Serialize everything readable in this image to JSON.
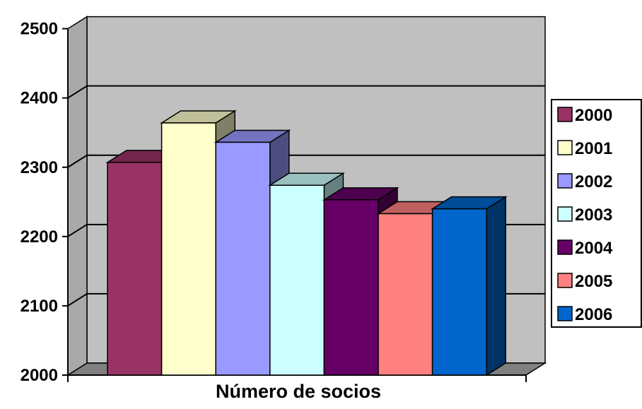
{
  "chart_data": {
    "type": "bar",
    "style": "3d-column",
    "x_axis_label": "Número de socios",
    "y_ticks": [
      "2000",
      "2100",
      "2200",
      "2300",
      "2400",
      "2500"
    ],
    "ylim": [
      2000,
      2500
    ],
    "grid": true,
    "legend_position": "right",
    "series": [
      {
        "name": "2000",
        "value": 2307,
        "color": "#993366"
      },
      {
        "name": "2001",
        "value": 2364,
        "color": "#FFFFCC"
      },
      {
        "name": "2002",
        "value": 2336,
        "color": "#9999FF"
      },
      {
        "name": "2003",
        "value": 2274,
        "color": "#CCFFFF"
      },
      {
        "name": "2004",
        "value": 2253,
        "color": "#660066"
      },
      {
        "name": "2005",
        "value": 2233,
        "color": "#FF8080"
      },
      {
        "name": "2006",
        "value": 2240,
        "color": "#0066CC"
      }
    ],
    "plot_background": "#C0C0C0"
  }
}
